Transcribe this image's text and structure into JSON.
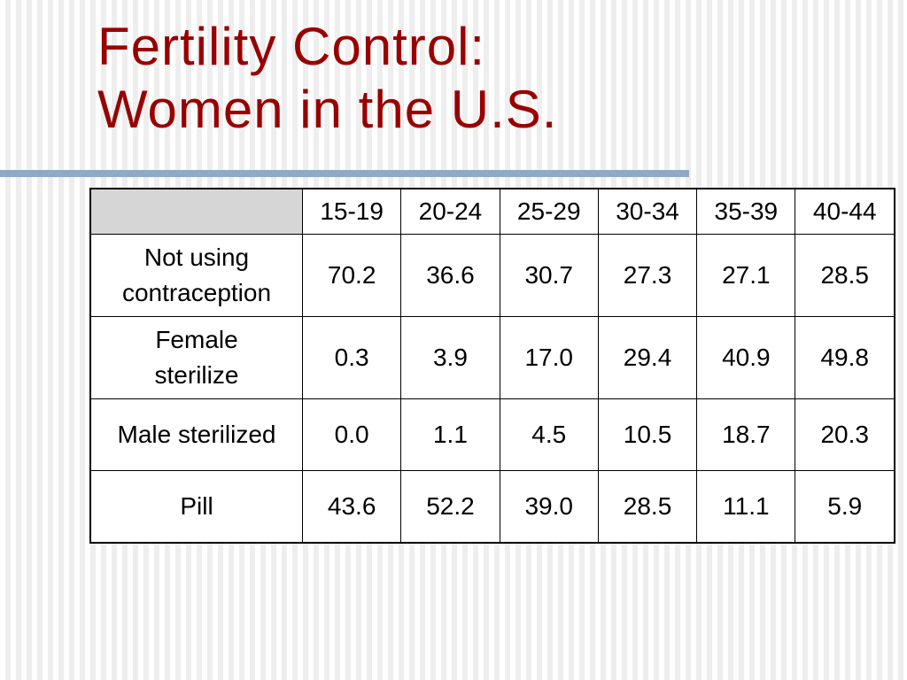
{
  "title": {
    "line1": "Fertility Control:",
    "line2": "Women in the U.S."
  },
  "table": {
    "columns": [
      "15-19",
      "20-24",
      "25-29",
      "30-34",
      "35-39",
      "40-44"
    ],
    "rows": [
      {
        "label_line1": "Not using",
        "label_line2": "contraception",
        "values": [
          "70.2",
          "36.6",
          "30.7",
          "27.3",
          "27.1",
          "28.5"
        ]
      },
      {
        "label_line1": "Female",
        "label_line2": "sterilize",
        "values": [
          "0.3",
          "3.9",
          "17.0",
          "29.4",
          "40.9",
          "49.8"
        ]
      },
      {
        "label_line1": "Male sterilized",
        "values": [
          "0.0",
          "1.1",
          "4.5",
          "10.5",
          "18.7",
          "20.3"
        ]
      },
      {
        "label_line1": "Pill",
        "values": [
          "43.6",
          "52.2",
          "39.0",
          "28.5",
          "11.1",
          "5.9"
        ]
      }
    ]
  },
  "colors": {
    "title": "#990000",
    "rule": "#8faac6",
    "header_corner": "#d6d6d6"
  }
}
